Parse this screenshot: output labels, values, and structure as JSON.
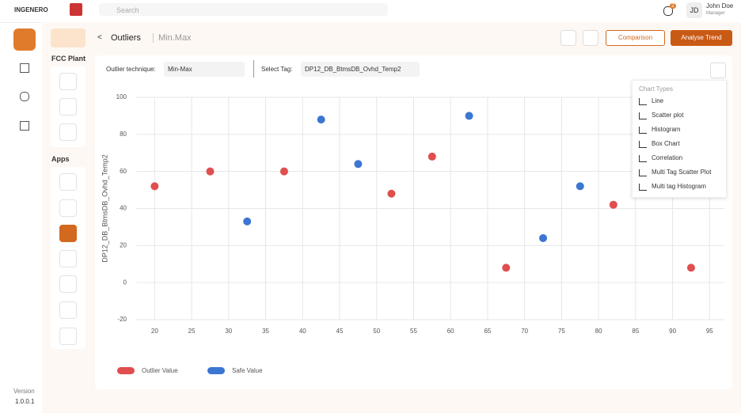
{
  "header": {
    "logo": "INGENERO",
    "search": "Search",
    "notifications": "2",
    "initials": "JD",
    "user_name": "John Doe",
    "user_role": "Manager"
  },
  "sidebar": {
    "version_label": "Version",
    "version": "1.0.0.1"
  },
  "left_panel": {
    "section1": "FCC Plant",
    "section2": "Apps"
  },
  "page": {
    "title": "Outliers",
    "subtitle": "Min.Max",
    "comparison": "Comparison",
    "analyse": "Analyse Trend"
  },
  "filters": {
    "technique_label": "Outlier technique:",
    "technique": "Min-Max",
    "tag_label": "Select Tag:",
    "tag": "DP12_DB_BtmsDB_Ovhd_Temp2"
  },
  "chart_types": {
    "title": "Chart Types",
    "items": [
      "Line",
      "Scatter plot",
      "Histogram",
      "Box Chart",
      "Correlation",
      "Multi Tag Scatter Plot",
      "Multi tag Histogram"
    ]
  },
  "chart_data": {
    "type": "scatter",
    "y_label": "DP12_DB_BtmsDB_Ovhd_Temp2",
    "xlim": [
      17.5,
      97
    ],
    "xticks": [
      20,
      25,
      30,
      35,
      40,
      45,
      50,
      55,
      60,
      65,
      70,
      75,
      80,
      85,
      90,
      95
    ],
    "ylim": [
      -20,
      100
    ],
    "yticks": [
      -20,
      0,
      20,
      40,
      60,
      80,
      100
    ],
    "grid": true,
    "series": [
      {
        "name": "Outlier Value",
        "color": "#e04e4e",
        "x": [
          20,
          27.5,
          37.5,
          52,
          57.5,
          67.5,
          82,
          92.5
        ],
        "values": [
          52,
          60,
          60,
          48,
          68,
          8,
          42,
          8
        ]
      },
      {
        "name": "Safe Value",
        "color": "#3b76d2",
        "x": [
          32.5,
          42.5,
          47.5,
          62.5,
          72.5,
          77.5
        ],
        "values": [
          33,
          88,
          64,
          90,
          24,
          52
        ]
      }
    ]
  }
}
